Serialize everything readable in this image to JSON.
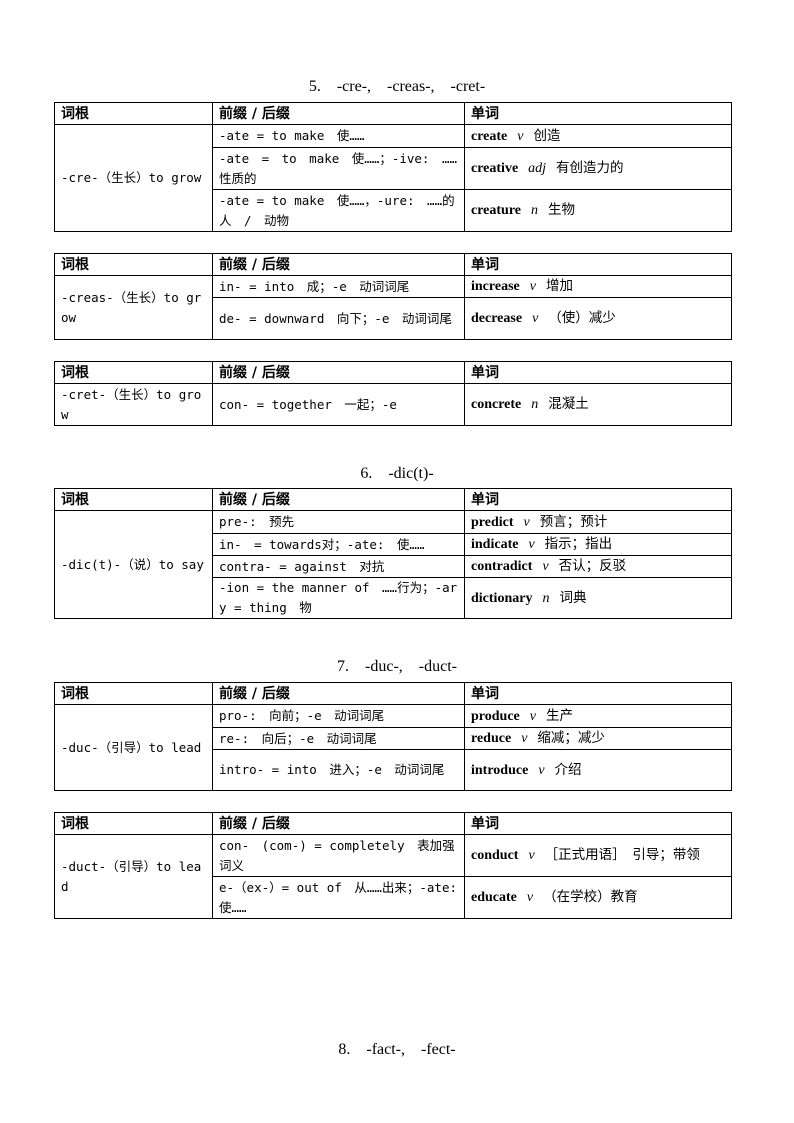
{
  "headers": [
    "词根",
    "前缀 / 后缀",
    "单词"
  ],
  "sections": [
    {
      "title": "5.　-cre-,　-creas-,　-cret-",
      "tables": [
        {
          "root": "-cre-（生长）to grow",
          "rows": [
            {
              "affix": "-ate = to make　使……",
              "word": "create",
              "pos": "v",
              "meaning": "创造"
            },
            {
              "affix": "-ate　=　to　make　使……；-ive:　……性质的",
              "word": "creative",
              "pos": "adj",
              "meaning": "有创造力的"
            },
            {
              "affix": "-ate = to make　使……，-ure:　……的人　/　动物",
              "word": "creature",
              "pos": "n",
              "meaning": "生物"
            }
          ]
        },
        {
          "root": "-creas-（生长）to grow",
          "rows": [
            {
              "affix": "in- = into　成；-e　动词词尾",
              "word": "increase",
              "pos": "v",
              "meaning": "增加"
            },
            {
              "affix": "de- = downward　向下；-e　动词词尾",
              "word": "decrease",
              "pos": "v",
              "meaning": "（使）减少"
            }
          ]
        },
        {
          "root": "-cret-（生长）to grow",
          "rows": [
            {
              "affix": "con- = together　一起；-e",
              "word": "concrete",
              "pos": "n",
              "meaning": "混凝土"
            }
          ]
        }
      ]
    },
    {
      "title": "6.　-dic(t)-",
      "tables": [
        {
          "root": "-dic(t)-（说）to say",
          "rows": [
            {
              "affix": "pre-:　预先",
              "word": "predict",
              "pos": "v",
              "meaning": "预言；预计"
            },
            {
              "affix": "in-　= towards对；-ate:　使……",
              "word": "indicate",
              "pos": "v",
              "meaning": "指示；指出"
            },
            {
              "affix": "contra- = against　对抗",
              "word": "contradict",
              "pos": "v",
              "meaning": "否认；反驳"
            },
            {
              "affix": "-ion = the manner of　……行为；-ary = thing　物",
              "word": "dictionary",
              "pos": "n",
              "meaning": "词典"
            }
          ]
        }
      ]
    },
    {
      "title": "7.　-duc-,　-duct-",
      "tables": [
        {
          "root": "-duc-（引导）to lead",
          "rows": [
            {
              "affix": "pro-:　向前；-e　动词词尾",
              "word": "produce",
              "pos": "v",
              "meaning": "生产"
            },
            {
              "affix": "re-:　向后；-e　动词词尾",
              "word": "reduce",
              "pos": "v",
              "meaning": "缩减；减少"
            },
            {
              "affix": "intro- = into　进入；-e　动词词尾",
              "word": "introduce",
              "pos": "v",
              "meaning": "介绍"
            }
          ]
        },
        {
          "root": "-duct-（引导）to lead",
          "rows": [
            {
              "affix": "con-　(com-) = completely　表加强词义",
              "word": "conduct",
              "pos": "v",
              "meaning": "［正式用语］　引导；带领"
            },
            {
              "affix": "e-（ex-）= out of　从……出来；-ate:　使……",
              "word": "educate",
              "pos": "v",
              "meaning": "（在学校）教育"
            }
          ]
        }
      ]
    },
    {
      "title": "8.　-fact-,　-fect-",
      "tables": []
    }
  ]
}
